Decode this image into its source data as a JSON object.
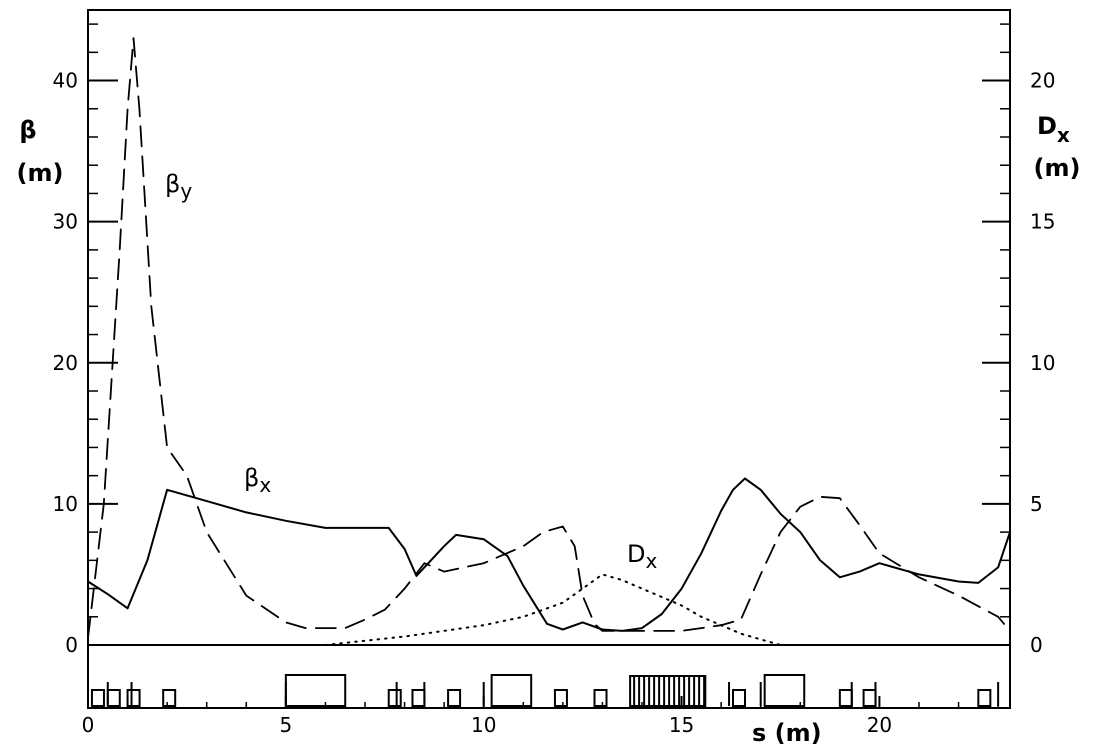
{
  "chart_data": {
    "type": "line",
    "xlabel": "s (m)",
    "x_ticks": [
      "0",
      "5",
      "10",
      "15",
      "20"
    ],
    "xlim": [
      0,
      23.3
    ],
    "y_left": {
      "label_line1": "β",
      "label_line2": "(m)",
      "ticks": [
        "0",
        "10",
        "20",
        "30",
        "40"
      ],
      "lim": [
        0,
        45
      ]
    },
    "y_right": {
      "label_line1": "D",
      "label_sub": "x",
      "label_line2": "(m)",
      "ticks": [
        "0",
        "5",
        "10",
        "15",
        "20"
      ],
      "lim": [
        0,
        22.5
      ]
    },
    "series": [
      {
        "name": "β",
        "sub": "x",
        "axis": "left",
        "style": "solid",
        "x": [
          0,
          0.5,
          1.0,
          1.5,
          2.0,
          3.0,
          4.0,
          5.0,
          6.0,
          7.0,
          7.6,
          8.0,
          8.3,
          8.6,
          9.0,
          9.3,
          10.0,
          10.6,
          11.0,
          11.6,
          12.0,
          12.5,
          13.0,
          13.5,
          14.0,
          14.5,
          15.0,
          15.5,
          16.0,
          16.3,
          16.6,
          17.0,
          17.5,
          18.0,
          18.5,
          19.0,
          19.5,
          20.0,
          21.0,
          22.0,
          22.5,
          23.0,
          23.3
        ],
        "y": [
          4.5,
          3.6,
          2.6,
          6.0,
          11.0,
          10.2,
          9.4,
          8.8,
          8.3,
          8.3,
          8.3,
          6.8,
          4.9,
          5.8,
          7.0,
          7.8,
          7.5,
          6.3,
          4.2,
          1.5,
          1.1,
          1.6,
          1.1,
          1.0,
          1.2,
          2.2,
          4.0,
          6.5,
          9.5,
          11.0,
          11.8,
          11.0,
          9.3,
          8.0,
          6.0,
          4.8,
          5.2,
          5.8,
          5.0,
          4.5,
          4.4,
          5.5,
          8.0
        ]
      },
      {
        "name": "β",
        "sub": "y",
        "axis": "left",
        "style": "dashed",
        "x": [
          0,
          0.4,
          0.8,
          1.0,
          1.15,
          1.3,
          1.6,
          2.0,
          2.5,
          3.0,
          4.0,
          5.0,
          5.5,
          6.0,
          6.5,
          7.0,
          7.5,
          8.0,
          8.5,
          9.0,
          10.0,
          11.0,
          11.5,
          12.0,
          12.3,
          12.5,
          12.8,
          13.0,
          13.5,
          14.0,
          14.5,
          15.0,
          15.5,
          16.0,
          16.5,
          17.0,
          17.5,
          18.0,
          18.5,
          19.0,
          19.5,
          20.0,
          21.0,
          22.0,
          23.0,
          23.3
        ],
        "y": [
          0.5,
          10.0,
          28.0,
          38.0,
          43.0,
          38.0,
          24.0,
          14.0,
          12.0,
          8.0,
          3.5,
          1.6,
          1.2,
          1.2,
          1.2,
          1.8,
          2.5,
          4.0,
          5.8,
          5.2,
          5.8,
          7.0,
          8.0,
          8.4,
          7.0,
          3.5,
          1.5,
          1.0,
          1.0,
          1.0,
          1.0,
          1.0,
          1.2,
          1.4,
          1.8,
          5.0,
          8.0,
          9.8,
          10.5,
          10.4,
          8.5,
          6.5,
          4.8,
          3.5,
          2.0,
          1.0
        ]
      },
      {
        "name": "D",
        "sub": "x",
        "axis": "right",
        "style": "dotted",
        "x": [
          6.0,
          8.0,
          10.0,
          11.0,
          12.0,
          12.5,
          13.0,
          13.5,
          14.0,
          14.5,
          15.0,
          15.5,
          16.0,
          16.5,
          17.0,
          17.5
        ],
        "y": [
          0.0,
          0.3,
          0.7,
          1.0,
          1.5,
          2.0,
          2.5,
          2.3,
          2.0,
          1.7,
          1.4,
          1.0,
          0.7,
          0.4,
          0.2,
          0.0
        ]
      }
    ],
    "lattice": {
      "thin_boxes_s": [
        0.1,
        0.5,
        1.0,
        1.9,
        7.6,
        8.2,
        9.1,
        11.8,
        12.8,
        16.3,
        19.0,
        19.6,
        22.5
      ],
      "wide_boxes": [
        [
          5.0,
          6.5
        ],
        [
          10.2,
          11.2
        ],
        [
          17.1,
          18.1
        ]
      ],
      "vertical_markers_s": [
        0.5,
        1.1,
        5.0,
        7.8,
        8.5,
        10.0,
        16.2,
        17.0,
        19.3,
        19.9,
        23.0,
        23.3
      ],
      "dense_block": [
        13.7,
        15.6
      ]
    }
  }
}
